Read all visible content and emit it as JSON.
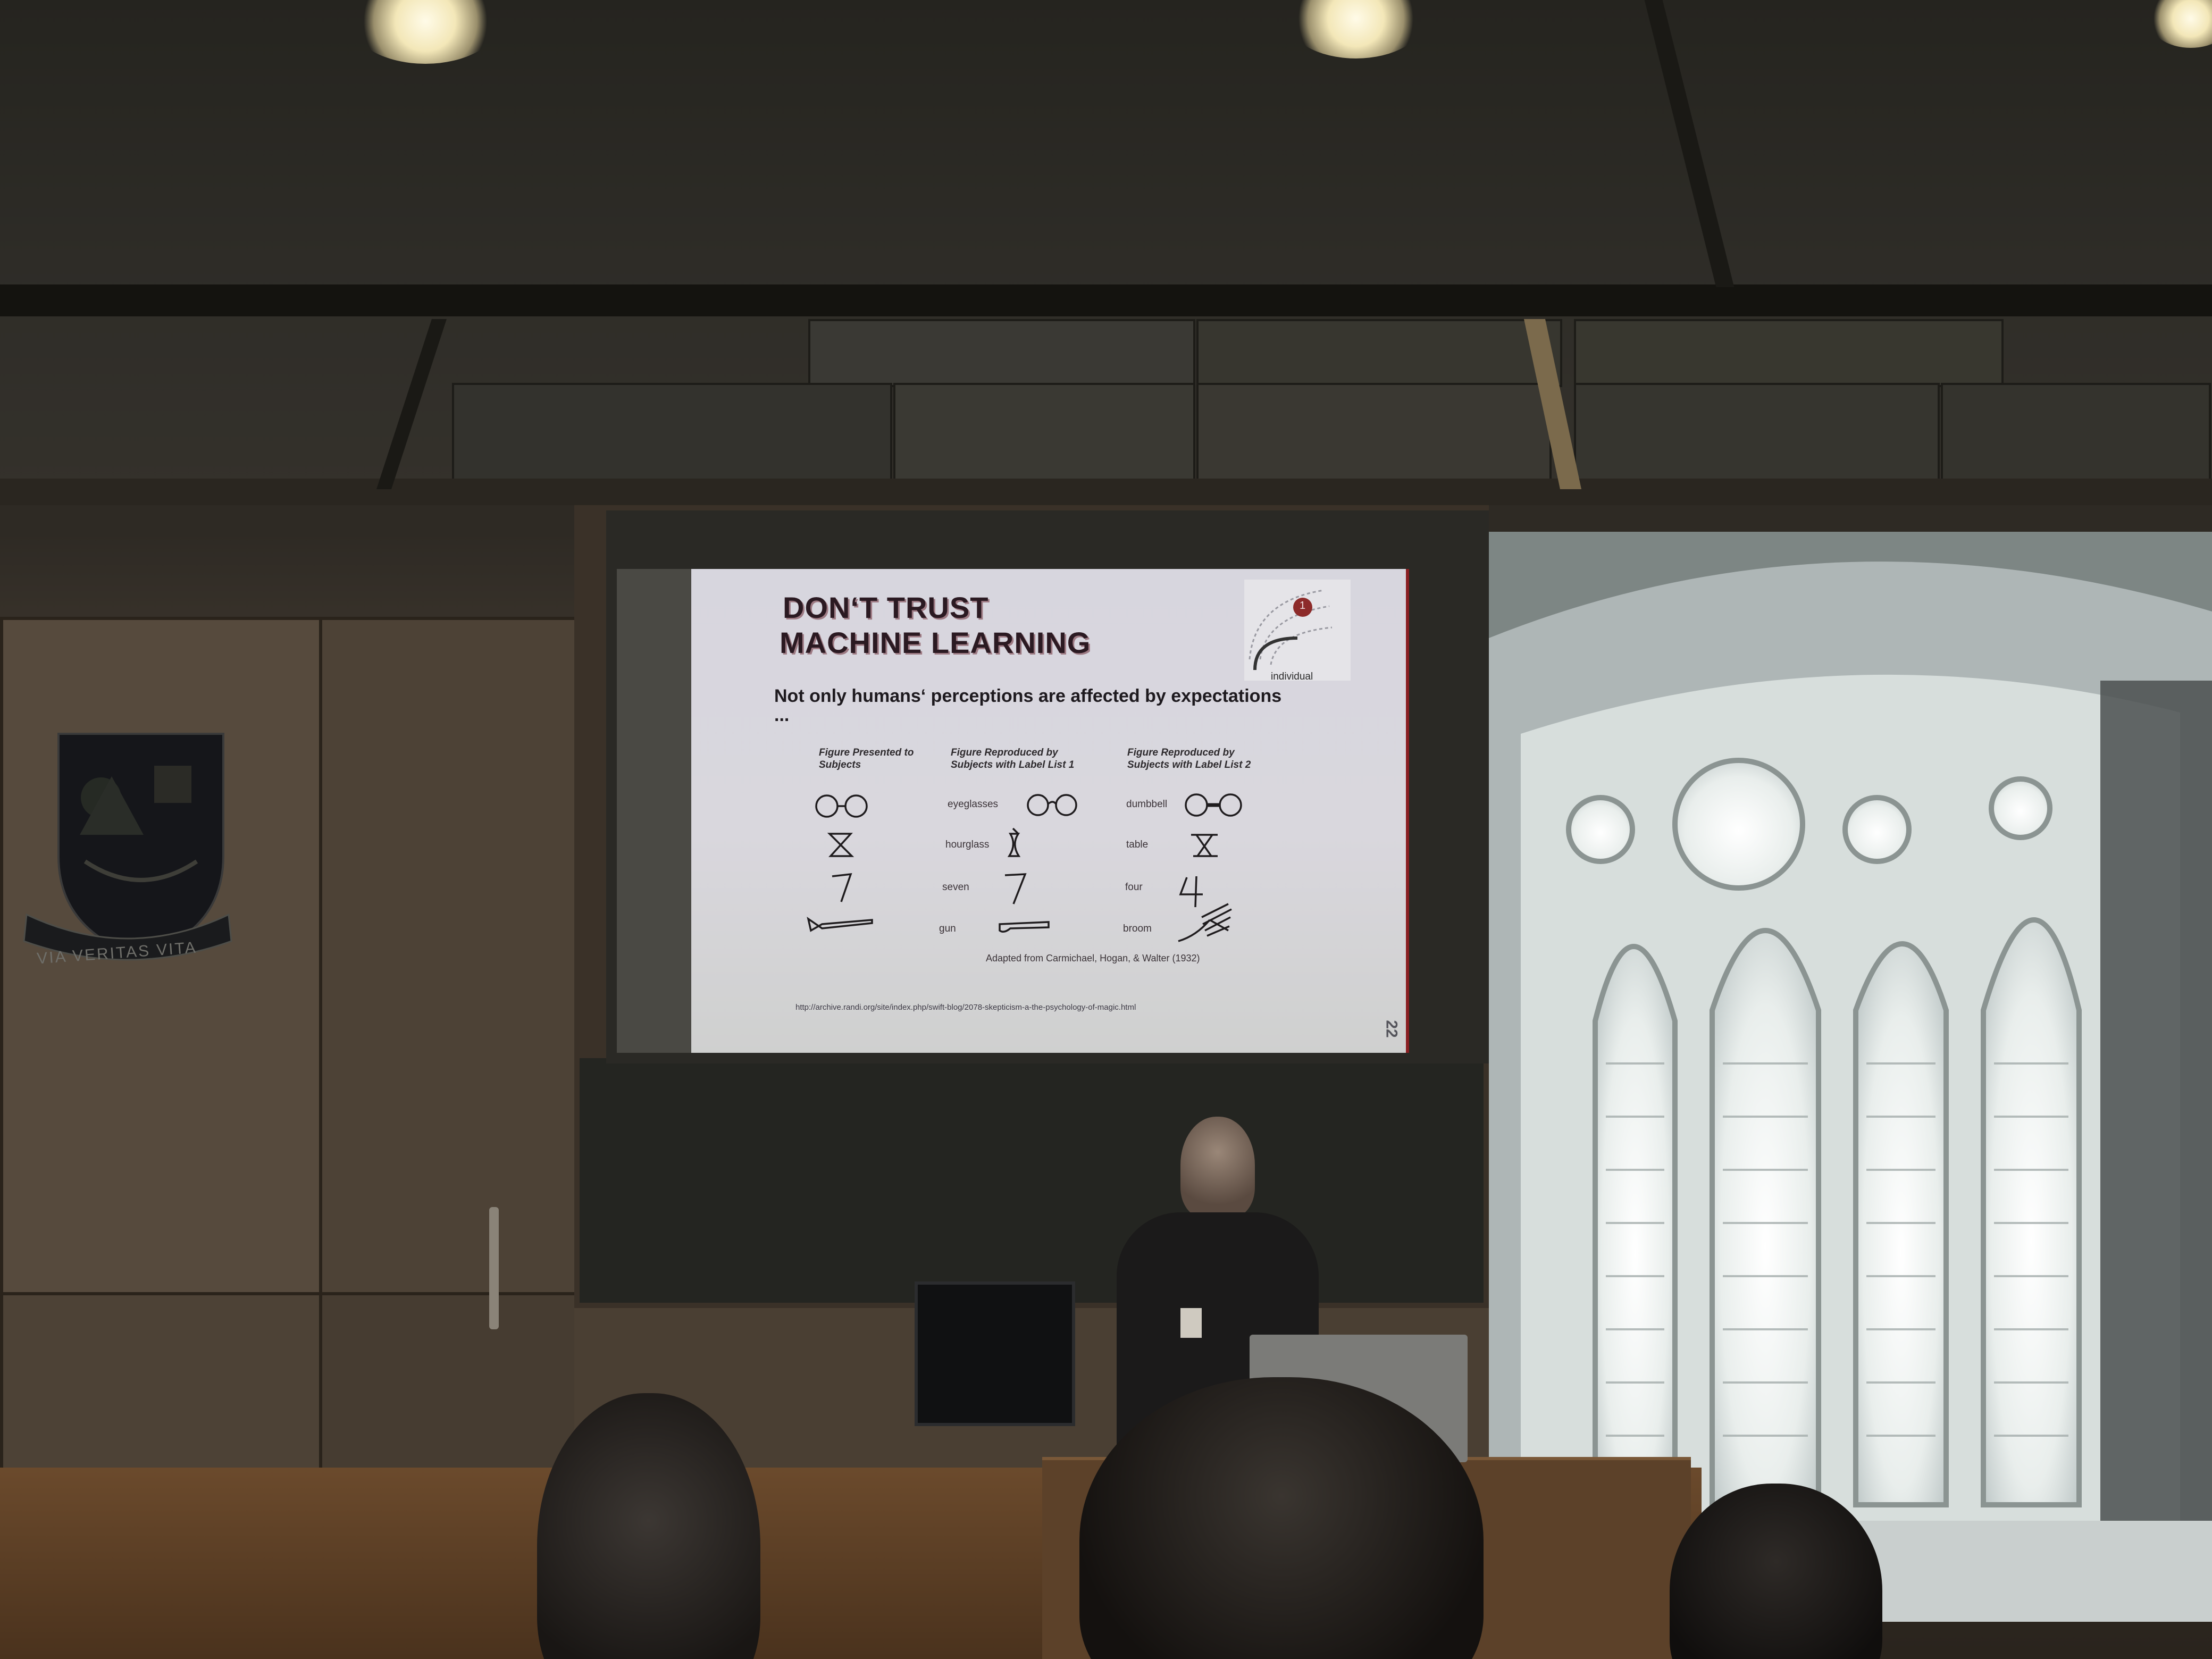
{
  "slide": {
    "title_line1": "DON‘T TRUST",
    "title_line2": "MACHINE LEARNING",
    "subtitle_line1": "Not only humans‘ perceptions are affected by expectations",
    "subtitle_line2": "...",
    "badge_label": "individual",
    "badge_number": "1",
    "columns": [
      {
        "heading": "Figure Presented to Subjects"
      },
      {
        "heading": "Figure Reproduced by Subjects with Label List 1"
      },
      {
        "heading": "Figure Reproduced by Subjects with Label List 2"
      }
    ],
    "rows": [
      {
        "label1": "eyeglasses",
        "label2": "dumbbell"
      },
      {
        "label1": "hourglass",
        "label2": "table"
      },
      {
        "label1": "seven",
        "label2": "four"
      },
      {
        "label1": "gun",
        "label2": "broom"
      }
    ],
    "credit": "Adapted from Carmichael, Hogan, & Walter (1932)",
    "url": "http://archive.randi.org/site/index.php/swift-blog/2078-skepticism-a-the-psychology-of-magic.html",
    "page_number": "22"
  },
  "crest": {
    "motto": "VIA VERITAS VITA"
  },
  "colors": {
    "slide_title": "#2b1a22",
    "slide_accent": "#8a1f22",
    "wall": "#4a4034",
    "window_light": "#eef2f0"
  }
}
